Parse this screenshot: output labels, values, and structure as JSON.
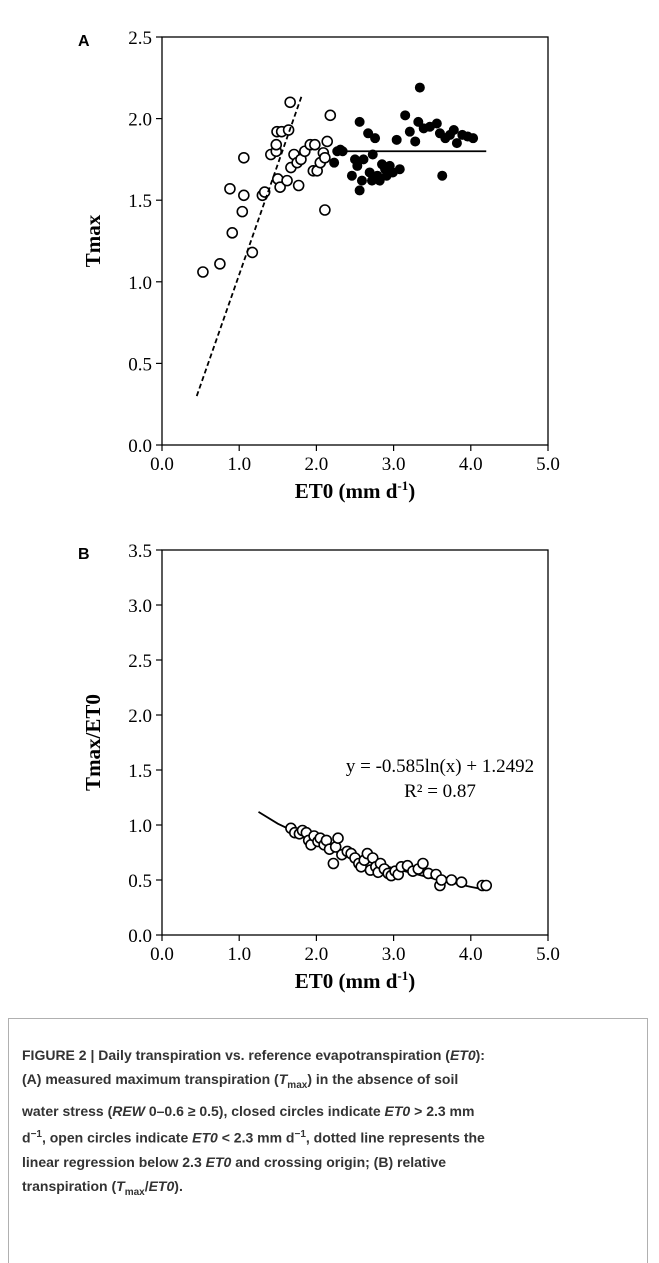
{
  "chart_data": [
    {
      "type": "scatter",
      "panel": "A",
      "y_label": "Tmax",
      "x_label": [
        "ET0 (mm d",
        "-1",
        ")"
      ],
      "xlim": [
        0,
        5
      ],
      "xticks": [
        {
          "value": 0,
          "label": "0.0"
        },
        {
          "value": 1,
          "label": "1.0"
        },
        {
          "value": 2,
          "label": "2.0"
        },
        {
          "value": 3,
          "label": "3.0"
        },
        {
          "value": 4,
          "label": "4.0"
        },
        {
          "value": 5,
          "label": "5.0"
        }
      ],
      "ylim": [
        0,
        2.5
      ],
      "yticks": [
        {
          "value": 0,
          "label": "0.0"
        },
        0.5,
        {
          "value": 1,
          "label": "1.0"
        },
        1.5,
        {
          "value": 2,
          "label": "2.0"
        },
        2.5
      ],
      "series": [
        {
          "marker": "open",
          "color": "#000000",
          "x": [
            0.53,
            0.75,
            0.88,
            0.91,
            1.04,
            1.06,
            1.06,
            1.17,
            1.3,
            1.33,
            1.41,
            1.48,
            1.49,
            1.48,
            1.5,
            1.53,
            1.55,
            1.62,
            1.64,
            1.66,
            1.67,
            1.71,
            1.75,
            1.77,
            1.8,
            1.85,
            1.92,
            1.96,
            1.98,
            2.01,
            2.05,
            2.09,
            2.11,
            2.14,
            2.11,
            2.18
          ],
          "values": [
            1.06,
            1.11,
            1.57,
            1.3,
            1.43,
            1.53,
            1.76,
            1.18,
            1.53,
            1.55,
            1.78,
            1.8,
            1.92,
            1.84,
            1.63,
            1.58,
            1.92,
            1.62,
            1.93,
            2.1,
            1.7,
            1.78,
            1.73,
            1.59,
            1.75,
            1.8,
            1.84,
            1.68,
            1.84,
            1.68,
            1.73,
            1.79,
            1.76,
            1.86,
            1.44,
            2.02
          ]
        },
        {
          "marker": "filled",
          "color": "#000000",
          "x": [
            2.23,
            2.27,
            2.31,
            2.34,
            2.46,
            2.5,
            2.53,
            2.56,
            2.56,
            2.59,
            2.61,
            2.67,
            2.69,
            2.72,
            2.73,
            2.76,
            2.79,
            2.82,
            2.85,
            2.89,
            2.91,
            2.95,
            2.99,
            3.04,
            3.08,
            3.15,
            3.21,
            3.28,
            3.32,
            3.34,
            3.39,
            3.47,
            3.56,
            3.6,
            3.63,
            3.67,
            3.73,
            3.78,
            3.82,
            3.89,
            3.96,
            4.03
          ],
          "values": [
            1.73,
            1.8,
            1.81,
            1.8,
            1.65,
            1.75,
            1.71,
            1.98,
            1.56,
            1.62,
            1.75,
            1.91,
            1.67,
            1.62,
            1.78,
            1.88,
            1.65,
            1.62,
            1.72,
            1.69,
            1.65,
            1.71,
            1.67,
            1.87,
            1.69,
            2.02,
            1.92,
            1.86,
            1.98,
            2.19,
            1.94,
            1.95,
            1.97,
            1.91,
            1.65,
            1.88,
            1.9,
            1.93,
            1.85,
            1.9,
            1.89,
            1.88
          ]
        },
        {
          "style": "dashed",
          "color": "#000000",
          "x": [
            0.45,
            1.81
          ],
          "values": [
            0.3,
            2.14
          ]
        },
        {
          "style": "solid",
          "color": "#000000",
          "x": [
            2.35,
            4.2
          ],
          "values": [
            1.8,
            1.8
          ]
        }
      ]
    },
    {
      "type": "scatter",
      "panel": "B",
      "y_label": "Tmax/ET0",
      "x_label": [
        "ET0 (mm d",
        "-1",
        ")"
      ],
      "annotations": [
        "y = -0.585ln(x) + 1.2492",
        "R² = 0.87"
      ],
      "xlim": [
        0,
        5
      ],
      "xticks": [
        {
          "value": 0,
          "label": "0.0"
        },
        {
          "value": 1,
          "label": "1.0"
        },
        {
          "value": 2,
          "label": "2.0"
        },
        {
          "value": 3,
          "label": "3.0"
        },
        {
          "value": 4,
          "label": "4.0"
        },
        {
          "value": 5,
          "label": "5.0"
        }
      ],
      "ylim": [
        0,
        3.5
      ],
      "yticks": [
        {
          "value": 0,
          "label": "0.0"
        },
        0.5,
        {
          "value": 1,
          "label": "1.0"
        },
        1.5,
        {
          "value": 2,
          "label": "2.0"
        },
        2.5,
        {
          "value": 3,
          "label": "3.0"
        },
        3.5
      ],
      "series": [
        {
          "style": "solid",
          "color": "#000000",
          "x": [
            1.25,
            1.5,
            2,
            2.5,
            3,
            3.5,
            4,
            4.2
          ],
          "values": [
            1.119,
            1.012,
            0.844,
            0.713,
            0.606,
            0.516,
            0.438,
            0.41
          ]
        },
        {
          "marker": "open",
          "color": "#000000",
          "x": [
            1.67,
            1.72,
            1.78,
            1.82,
            1.87,
            1.9,
            1.93,
            1.97,
            2.02,
            2.05,
            2.1,
            2.13,
            2.17,
            2.22,
            2.25,
            2.28,
            2.33,
            2.4,
            2.45,
            2.5,
            2.55,
            2.58,
            2.62,
            2.66,
            2.7,
            2.73,
            2.77,
            2.8,
            2.83,
            2.88,
            2.93,
            2.97,
            3.02,
            3.06,
            3.1,
            3.18,
            3.25,
            3.32,
            3.38,
            3.45,
            3.55,
            3.6,
            3.62,
            3.75,
            3.88,
            4.15,
            4.2
          ],
          "values": [
            0.97,
            0.93,
            0.92,
            0.95,
            0.93,
            0.86,
            0.82,
            0.9,
            0.85,
            0.88,
            0.82,
            0.86,
            0.78,
            0.65,
            0.8,
            0.88,
            0.73,
            0.76,
            0.74,
            0.7,
            0.65,
            0.62,
            0.68,
            0.74,
            0.59,
            0.7,
            0.62,
            0.57,
            0.65,
            0.6,
            0.56,
            0.54,
            0.58,
            0.55,
            0.62,
            0.63,
            0.58,
            0.6,
            0.65,
            0.56,
            0.55,
            0.45,
            0.5,
            0.5,
            0.48,
            0.45,
            0.45
          ]
        }
      ]
    }
  ],
  "caption": {
    "lines": [
      [
        {
          "text": "FIGURE 2 | Daily transpiration vs. reference evapotranspiration ("
        },
        {
          "text": "ET0",
          "style": "italic"
        },
        {
          "text": "):"
        }
      ],
      [
        {
          "text": "(A) measured maximum transpiration ("
        },
        {
          "text": "T",
          "style": "italic"
        },
        {
          "text": "max",
          "style": "sub"
        },
        {
          "text": ") in the absence of soil"
        }
      ],
      [
        {
          "text": "water stress ("
        },
        {
          "text": "REW",
          "style": "italic"
        },
        {
          "text": " 0–0.6 ≥ 0.5), closed circles indicate "
        },
        {
          "text": "ET0",
          "style": "italic"
        },
        {
          "text": " > 2.3 mm"
        }
      ],
      [
        {
          "text": "d"
        },
        {
          "text": "−1",
          "style": "sup"
        },
        {
          "text": ", open circles indicate "
        },
        {
          "text": "ET0",
          "style": "italic"
        },
        {
          "text": " < 2.3 mm d"
        },
        {
          "text": "−1",
          "style": "sup"
        },
        {
          "text": ", dotted line represents the"
        }
      ],
      [
        {
          "text": "linear regression below 2.3 "
        },
        {
          "text": "ET0",
          "style": "italic"
        },
        {
          "text": " and crossing origin; (B) relative"
        }
      ],
      [
        {
          "text": "transpiration ("
        },
        {
          "text": "T",
          "style": "italic"
        },
        {
          "text": "max",
          "style": "sub"
        },
        {
          "text": "/"
        },
        {
          "text": "ET0",
          "style": "italic"
        },
        {
          "text": ")."
        }
      ]
    ]
  }
}
